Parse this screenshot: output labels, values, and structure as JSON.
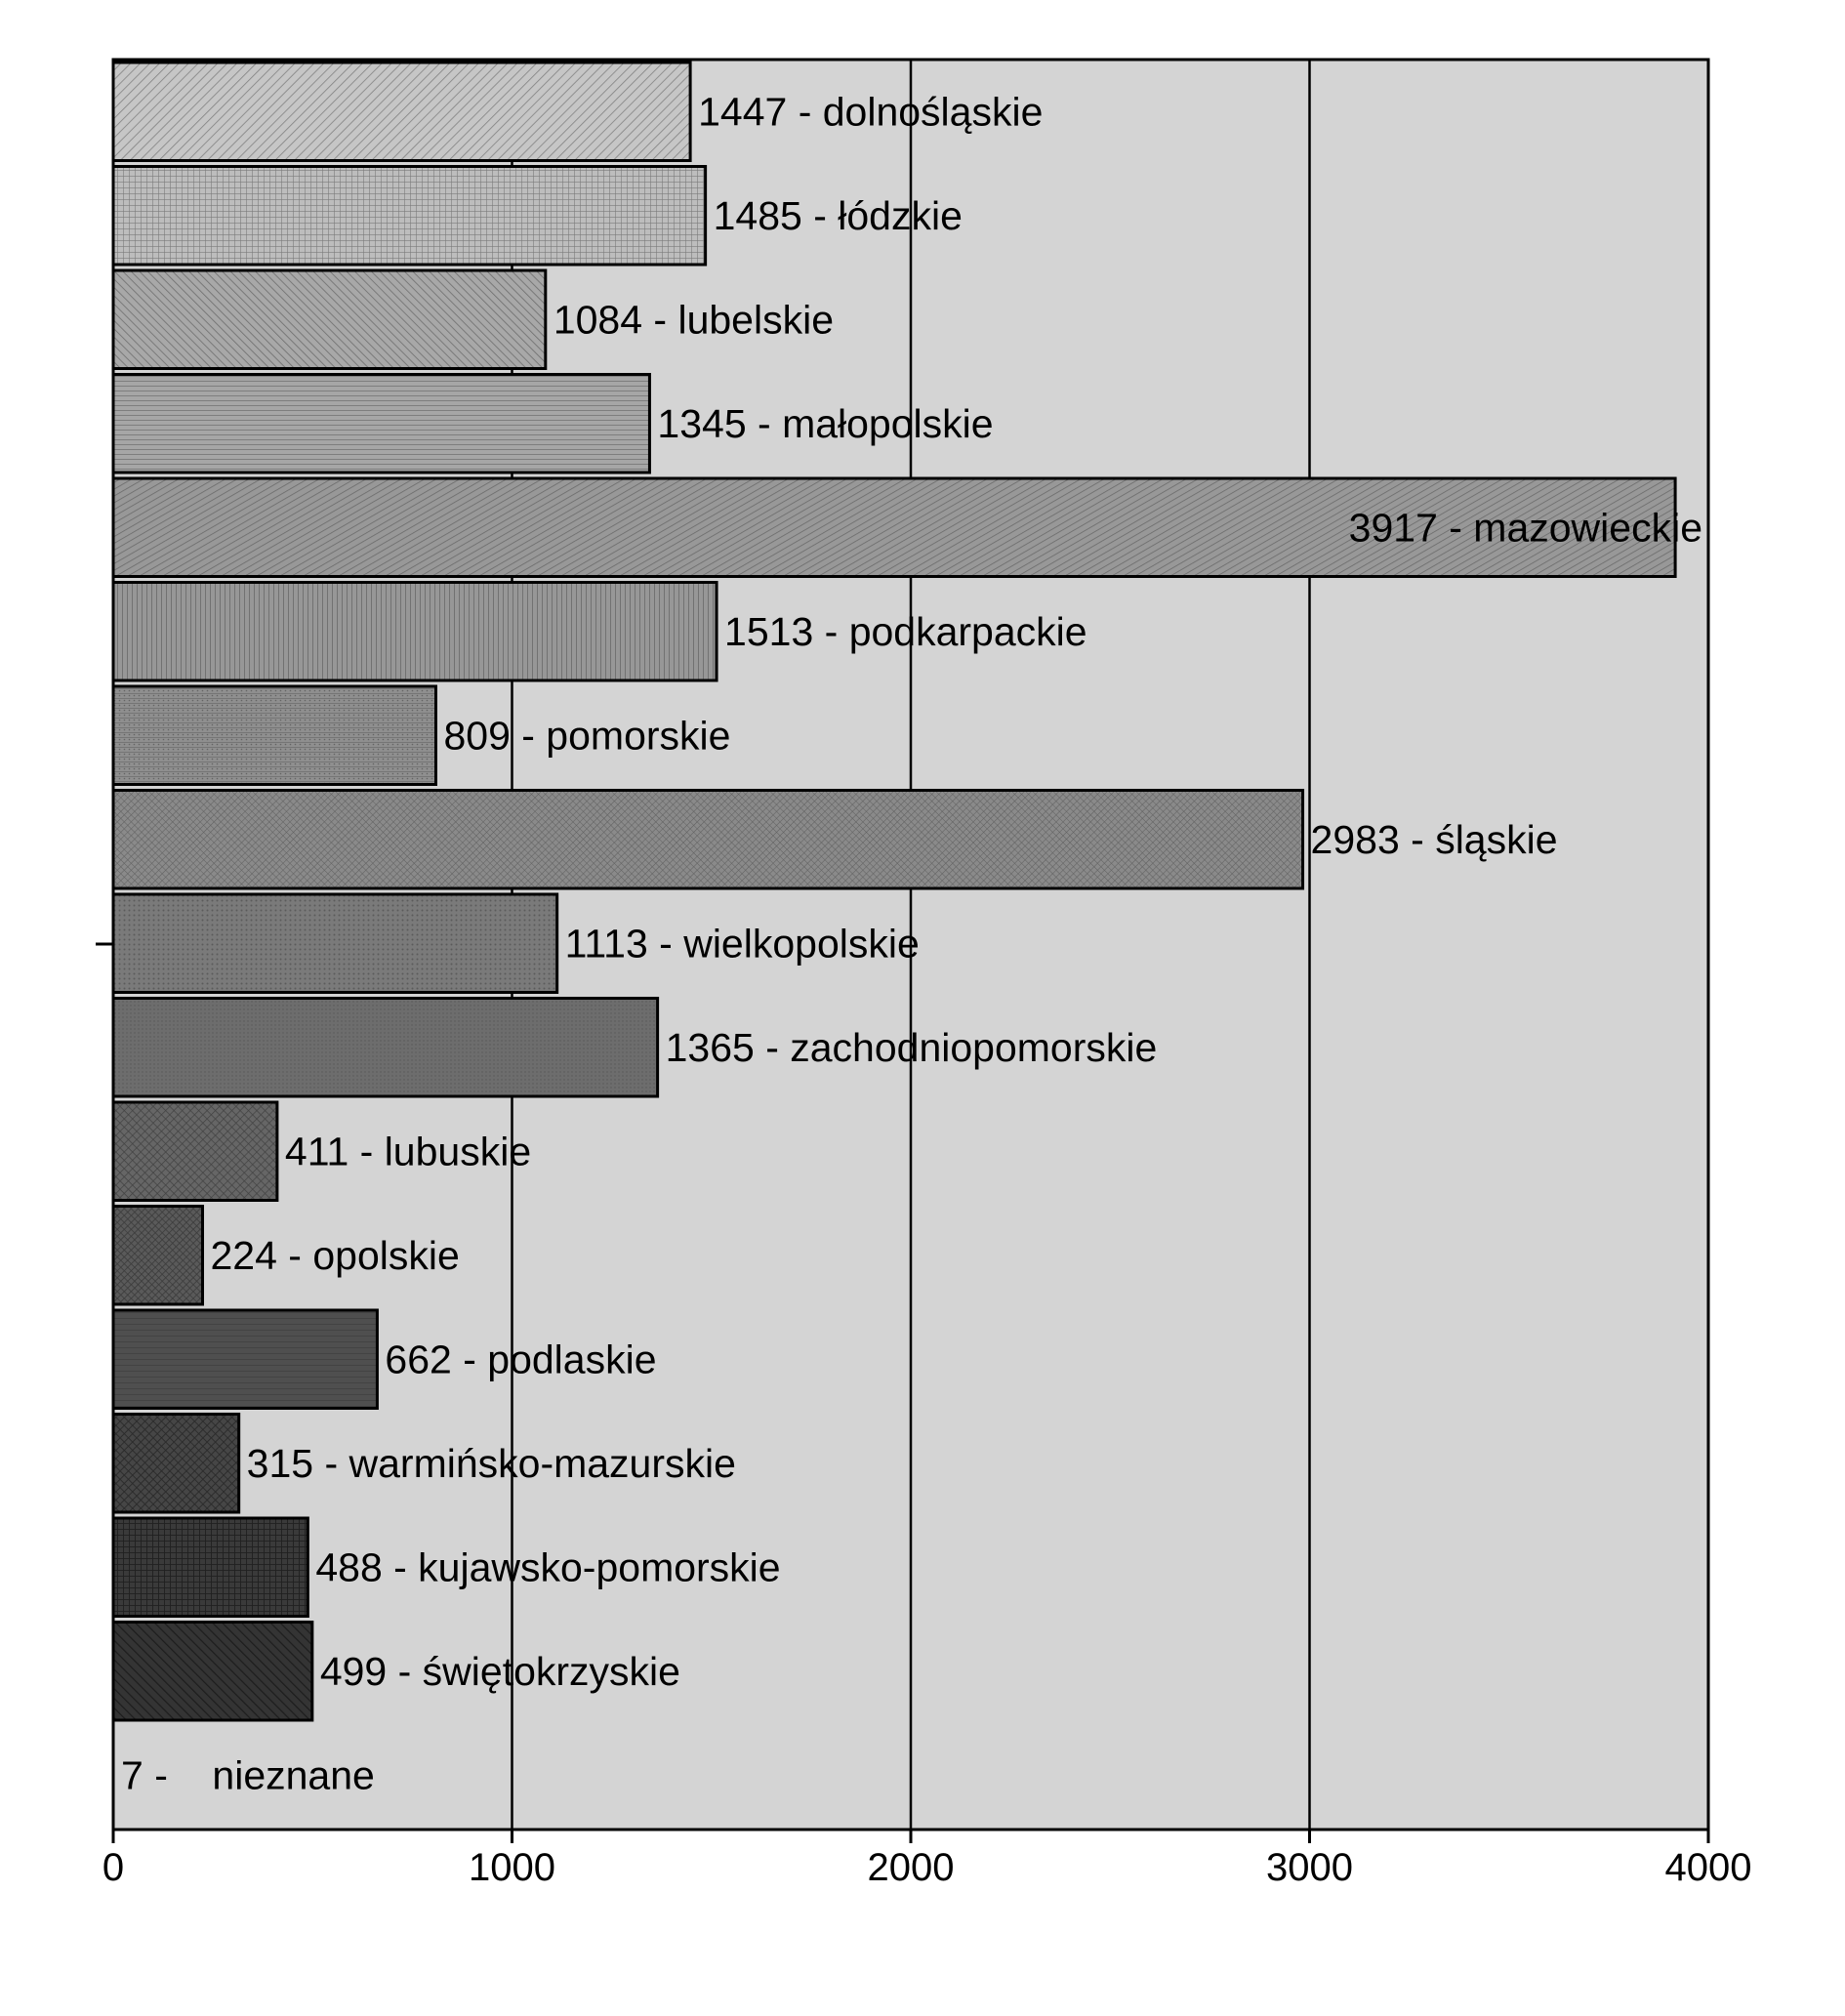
{
  "chart_data": {
    "type": "bar",
    "orientation": "horizontal",
    "title": "",
    "xlabel": "",
    "ylabel": "",
    "xlim": [
      0,
      4000
    ],
    "xticks": [
      0,
      1000,
      2000,
      3000,
      4000
    ],
    "grid": "vertical",
    "legend": "none",
    "plot_background": "#d4d4d4",
    "bars": [
      {
        "category": "dolnośląskie",
        "value": 1447,
        "label": "1447 - dolnośląskie",
        "fill": "#c6c6c6"
      },
      {
        "category": "łódzkie",
        "value": 1485,
        "label": "1485 - łódzkie",
        "fill": "#bdbdbd"
      },
      {
        "category": "lubelskie",
        "value": 1084,
        "label": "1084 - lubelskie",
        "fill": "#a8a8a8"
      },
      {
        "category": "małopolskie",
        "value": 1345,
        "label": "1345 - małopolskie",
        "fill": "#a6a6a6"
      },
      {
        "category": "mazowieckie",
        "value": 3917,
        "label": "3917 - mazowieckie",
        "fill": "#989898"
      },
      {
        "category": "podkarpackie",
        "value": 1513,
        "label": "1513 - podkarpackie",
        "fill": "#979797"
      },
      {
        "category": "pomorskie",
        "value": 809,
        "label": "809 - pomorskie",
        "fill": "#8f8f8f"
      },
      {
        "category": "śląskie",
        "value": 2983,
        "label": "2983 - śląskie",
        "fill": "#8a8a8a"
      },
      {
        "category": "wielkopolskie",
        "value": 1113,
        "label": "1113 - wielkopolskie",
        "fill": "#7a7a7a"
      },
      {
        "category": "zachodniopomorskie",
        "value": 1365,
        "label": "1365 - zachodniopomorskie",
        "fill": "#6d6d6d"
      },
      {
        "category": "lubuskie",
        "value": 411,
        "label": "411 - lubuskie",
        "fill": "#666666"
      },
      {
        "category": "opolskie",
        "value": 224,
        "label": "224 - opolskie",
        "fill": "#5a5a5a"
      },
      {
        "category": "podlaskie",
        "value": 662,
        "label": "662 - podlaskie",
        "fill": "#4f4f4f"
      },
      {
        "category": "warmińsko-mazurskie",
        "value": 315,
        "label": "315 - warmińsko-mazurskie",
        "fill": "#464646"
      },
      {
        "category": "kujawsko-pomorskie",
        "value": 488,
        "label": "488 - kujawsko-pomorskie",
        "fill": "#3a3a3a"
      },
      {
        "category": "świętokrzyskie",
        "value": 499,
        "label": "499 - świętokrzyskie",
        "fill": "#343434"
      },
      {
        "category": "nieznane",
        "value": 7,
        "label": "7 -    nieznane",
        "fill": "#2a2a2a"
      }
    ]
  }
}
